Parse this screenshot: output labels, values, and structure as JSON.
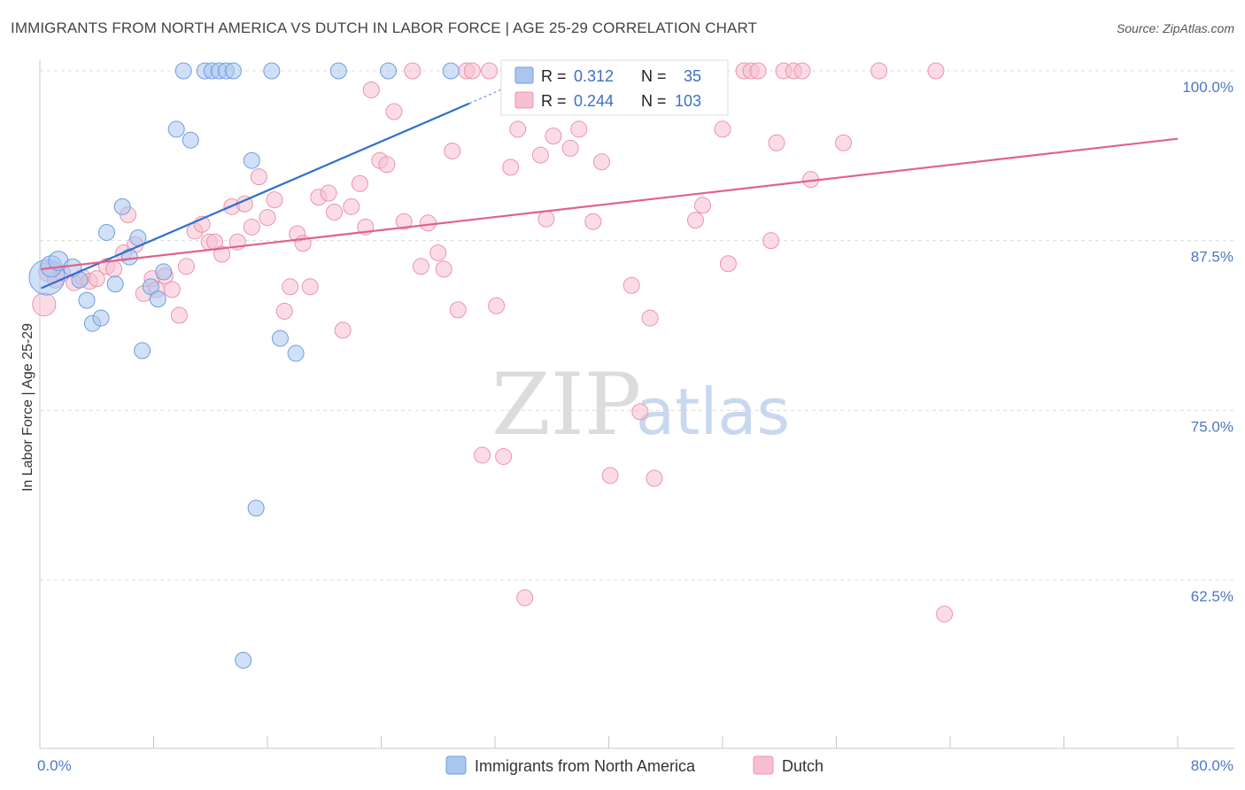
{
  "title": "IMMIGRANTS FROM NORTH AMERICA VS DUTCH IN LABOR FORCE | AGE 25-29 CORRELATION CHART",
  "source": "Source: ZipAtlas.com",
  "watermark": {
    "zip": "ZIP",
    "atlas": "atlas"
  },
  "chart_data": {
    "type": "scatter",
    "title": "IMMIGRANTS FROM NORTH AMERICA VS DUTCH IN LABOR FORCE | AGE 25-29 CORRELATION CHART",
    "xlabel": "",
    "ylabel": "In Labor Force | Age 25-29",
    "xlim": [
      0,
      80
    ],
    "ylim": [
      52,
      101.5
    ],
    "x_tick_labels": [
      "0.0%",
      "80.0%"
    ],
    "y_ticks": [
      62.5,
      75.0,
      87.5,
      100.0
    ],
    "y_tick_labels": [
      "62.5%",
      "75.0%",
      "87.5%",
      "100.0%"
    ],
    "grid": true,
    "legend_position": "bottom-center",
    "colors": {
      "blue_fill": "#aac6ee",
      "blue_edge": "#6f9de0",
      "blue_line": "#2f6fcf",
      "pink_fill": "#f7bfd0",
      "pink_edge": "#ec93ae",
      "pink_line": "#e0628c"
    },
    "stats": [
      {
        "r_label": "R =",
        "r_value": "0.312",
        "n_label": "N =",
        "n_value": "35"
      },
      {
        "r_label": "R =",
        "r_value": "0.244",
        "n_label": "N =",
        "n_value": "103"
      }
    ],
    "series": [
      {
        "name": "Immigrants from North America",
        "color": "blue",
        "trend": {
          "x0": 0.1,
          "y0": 84.0,
          "x1": 30.2,
          "y1": 97.6,
          "dash_x1": 33.5,
          "dash_y1": 99.1
        },
        "points": [
          [
            0.5,
            84.8,
            20
          ],
          [
            0.8,
            85.6,
            12
          ],
          [
            1.3,
            86.0,
            11
          ],
          [
            2.3,
            85.5,
            10
          ],
          [
            2.8,
            84.6,
            9
          ],
          [
            3.3,
            83.1,
            9
          ],
          [
            3.7,
            81.4,
            9
          ],
          [
            4.3,
            81.8,
            9
          ],
          [
            4.7,
            88.1,
            9
          ],
          [
            5.3,
            84.3,
            9
          ],
          [
            5.8,
            90.0,
            9
          ],
          [
            6.3,
            86.3,
            9
          ],
          [
            6.9,
            87.7,
            9
          ],
          [
            7.2,
            79.4,
            9
          ],
          [
            7.8,
            84.1,
            9
          ],
          [
            8.3,
            83.2,
            9
          ],
          [
            8.7,
            85.2,
            9
          ],
          [
            9.6,
            95.7,
            9
          ],
          [
            10.1,
            100.0,
            9
          ],
          [
            10.6,
            94.9,
            9
          ],
          [
            11.6,
            100.0,
            9
          ],
          [
            12.1,
            100.0,
            9
          ],
          [
            12.6,
            100.0,
            9
          ],
          [
            13.1,
            100.0,
            9
          ],
          [
            13.6,
            100.0,
            9
          ],
          [
            14.3,
            56.6,
            9
          ],
          [
            14.9,
            93.4,
            9
          ],
          [
            15.2,
            67.8,
            9
          ],
          [
            16.3,
            100.0,
            9
          ],
          [
            16.9,
            80.3,
            9
          ],
          [
            18.0,
            79.2,
            9
          ],
          [
            21.0,
            100.0,
            9
          ],
          [
            24.5,
            100.0,
            9
          ],
          [
            28.9,
            100.0,
            9
          ],
          [
            37.0,
            100.0,
            9
          ]
        ]
      },
      {
        "name": "Dutch",
        "color": "pink",
        "trend": {
          "x0": 0.1,
          "y0": 85.4,
          "x1": 80.0,
          "y1": 95.0
        },
        "points": [
          [
            0.3,
            82.8,
            13
          ],
          [
            0.6,
            85.2,
            11
          ],
          [
            1.1,
            84.6,
            9
          ],
          [
            1.6,
            85.1,
            9
          ],
          [
            2.4,
            84.4,
            9
          ],
          [
            3.0,
            84.8,
            9
          ],
          [
            3.5,
            84.5,
            9
          ],
          [
            4.0,
            84.7,
            9
          ],
          [
            4.7,
            85.6,
            9
          ],
          [
            5.2,
            85.4,
            9
          ],
          [
            5.9,
            86.6,
            9
          ],
          [
            6.2,
            89.4,
            9
          ],
          [
            6.7,
            87.2,
            9
          ],
          [
            7.3,
            83.6,
            9
          ],
          [
            7.9,
            84.7,
            9
          ],
          [
            8.2,
            83.9,
            9
          ],
          [
            8.8,
            84.9,
            9
          ],
          [
            9.3,
            83.9,
            9
          ],
          [
            9.8,
            82.0,
            9
          ],
          [
            10.3,
            85.6,
            9
          ],
          [
            10.9,
            88.2,
            9
          ],
          [
            11.4,
            88.7,
            9
          ],
          [
            11.9,
            87.4,
            9
          ],
          [
            12.3,
            87.4,
            9
          ],
          [
            12.8,
            86.5,
            9
          ],
          [
            13.5,
            90.0,
            9
          ],
          [
            13.9,
            87.4,
            9
          ],
          [
            14.4,
            90.2,
            9
          ],
          [
            14.9,
            88.5,
            9
          ],
          [
            15.4,
            92.2,
            9
          ],
          [
            16.0,
            89.2,
            9
          ],
          [
            16.5,
            90.5,
            9
          ],
          [
            17.2,
            82.3,
            9
          ],
          [
            17.6,
            84.1,
            9
          ],
          [
            18.1,
            88.0,
            9
          ],
          [
            18.5,
            87.3,
            9
          ],
          [
            19.0,
            84.1,
            9
          ],
          [
            19.6,
            90.7,
            9
          ],
          [
            20.3,
            91.0,
            9
          ],
          [
            20.7,
            89.6,
            9
          ],
          [
            21.3,
            80.9,
            9
          ],
          [
            21.9,
            90.0,
            9
          ],
          [
            22.5,
            91.7,
            9
          ],
          [
            22.9,
            88.5,
            9
          ],
          [
            23.3,
            98.6,
            9
          ],
          [
            23.9,
            93.4,
            9
          ],
          [
            24.4,
            93.1,
            9
          ],
          [
            24.9,
            97.0,
            9
          ],
          [
            25.6,
            88.9,
            9
          ],
          [
            26.2,
            100.0,
            9
          ],
          [
            26.8,
            85.6,
            9
          ],
          [
            27.3,
            88.8,
            9
          ],
          [
            28.0,
            86.6,
            9
          ],
          [
            28.4,
            85.4,
            9
          ],
          [
            29.0,
            94.1,
            9
          ],
          [
            29.4,
            82.4,
            9
          ],
          [
            30.0,
            100.0,
            9
          ],
          [
            30.4,
            100.0,
            9
          ],
          [
            31.1,
            71.7,
            9
          ],
          [
            31.6,
            100.0,
            9
          ],
          [
            32.1,
            82.7,
            9
          ],
          [
            32.6,
            71.6,
            9
          ],
          [
            33.1,
            92.9,
            9
          ],
          [
            33.6,
            95.7,
            9
          ],
          [
            34.1,
            61.2,
            9
          ],
          [
            34.6,
            100.0,
            9
          ],
          [
            35.2,
            93.8,
            9
          ],
          [
            35.6,
            89.1,
            9
          ],
          [
            36.1,
            95.2,
            9
          ],
          [
            36.6,
            100.0,
            9
          ],
          [
            37.3,
            94.3,
            9
          ],
          [
            37.9,
            95.7,
            9
          ],
          [
            38.4,
            100.0,
            9
          ],
          [
            38.9,
            88.9,
            9
          ],
          [
            39.5,
            93.3,
            9
          ],
          [
            40.1,
            70.2,
            9
          ],
          [
            40.5,
            100.0,
            9
          ],
          [
            41.0,
            100.0,
            9
          ],
          [
            41.6,
            84.2,
            9
          ],
          [
            42.2,
            74.9,
            9
          ],
          [
            42.9,
            81.8,
            9
          ],
          [
            43.2,
            70.0,
            9
          ],
          [
            43.9,
            100.0,
            9
          ],
          [
            44.5,
            97.8,
            9
          ],
          [
            45.1,
            100.0,
            9
          ],
          [
            45.6,
            100.0,
            9
          ],
          [
            46.1,
            89.0,
            9
          ],
          [
            46.6,
            90.1,
            9
          ],
          [
            47.2,
            100.0,
            9
          ],
          [
            48.0,
            95.7,
            9
          ],
          [
            48.4,
            85.8,
            9
          ],
          [
            49.5,
            100.0,
            9
          ],
          [
            50.0,
            100.0,
            9
          ],
          [
            50.5,
            100.0,
            9
          ],
          [
            51.4,
            87.5,
            9
          ],
          [
            51.8,
            94.7,
            9
          ],
          [
            52.3,
            100.0,
            9
          ],
          [
            53.0,
            100.0,
            9
          ],
          [
            53.6,
            100.0,
            9
          ],
          [
            54.2,
            92.0,
            9
          ],
          [
            56.5,
            94.7,
            9
          ],
          [
            59.0,
            100.0,
            9
          ],
          [
            63.0,
            100.0,
            9
          ],
          [
            63.6,
            60.0,
            9
          ]
        ]
      }
    ]
  }
}
